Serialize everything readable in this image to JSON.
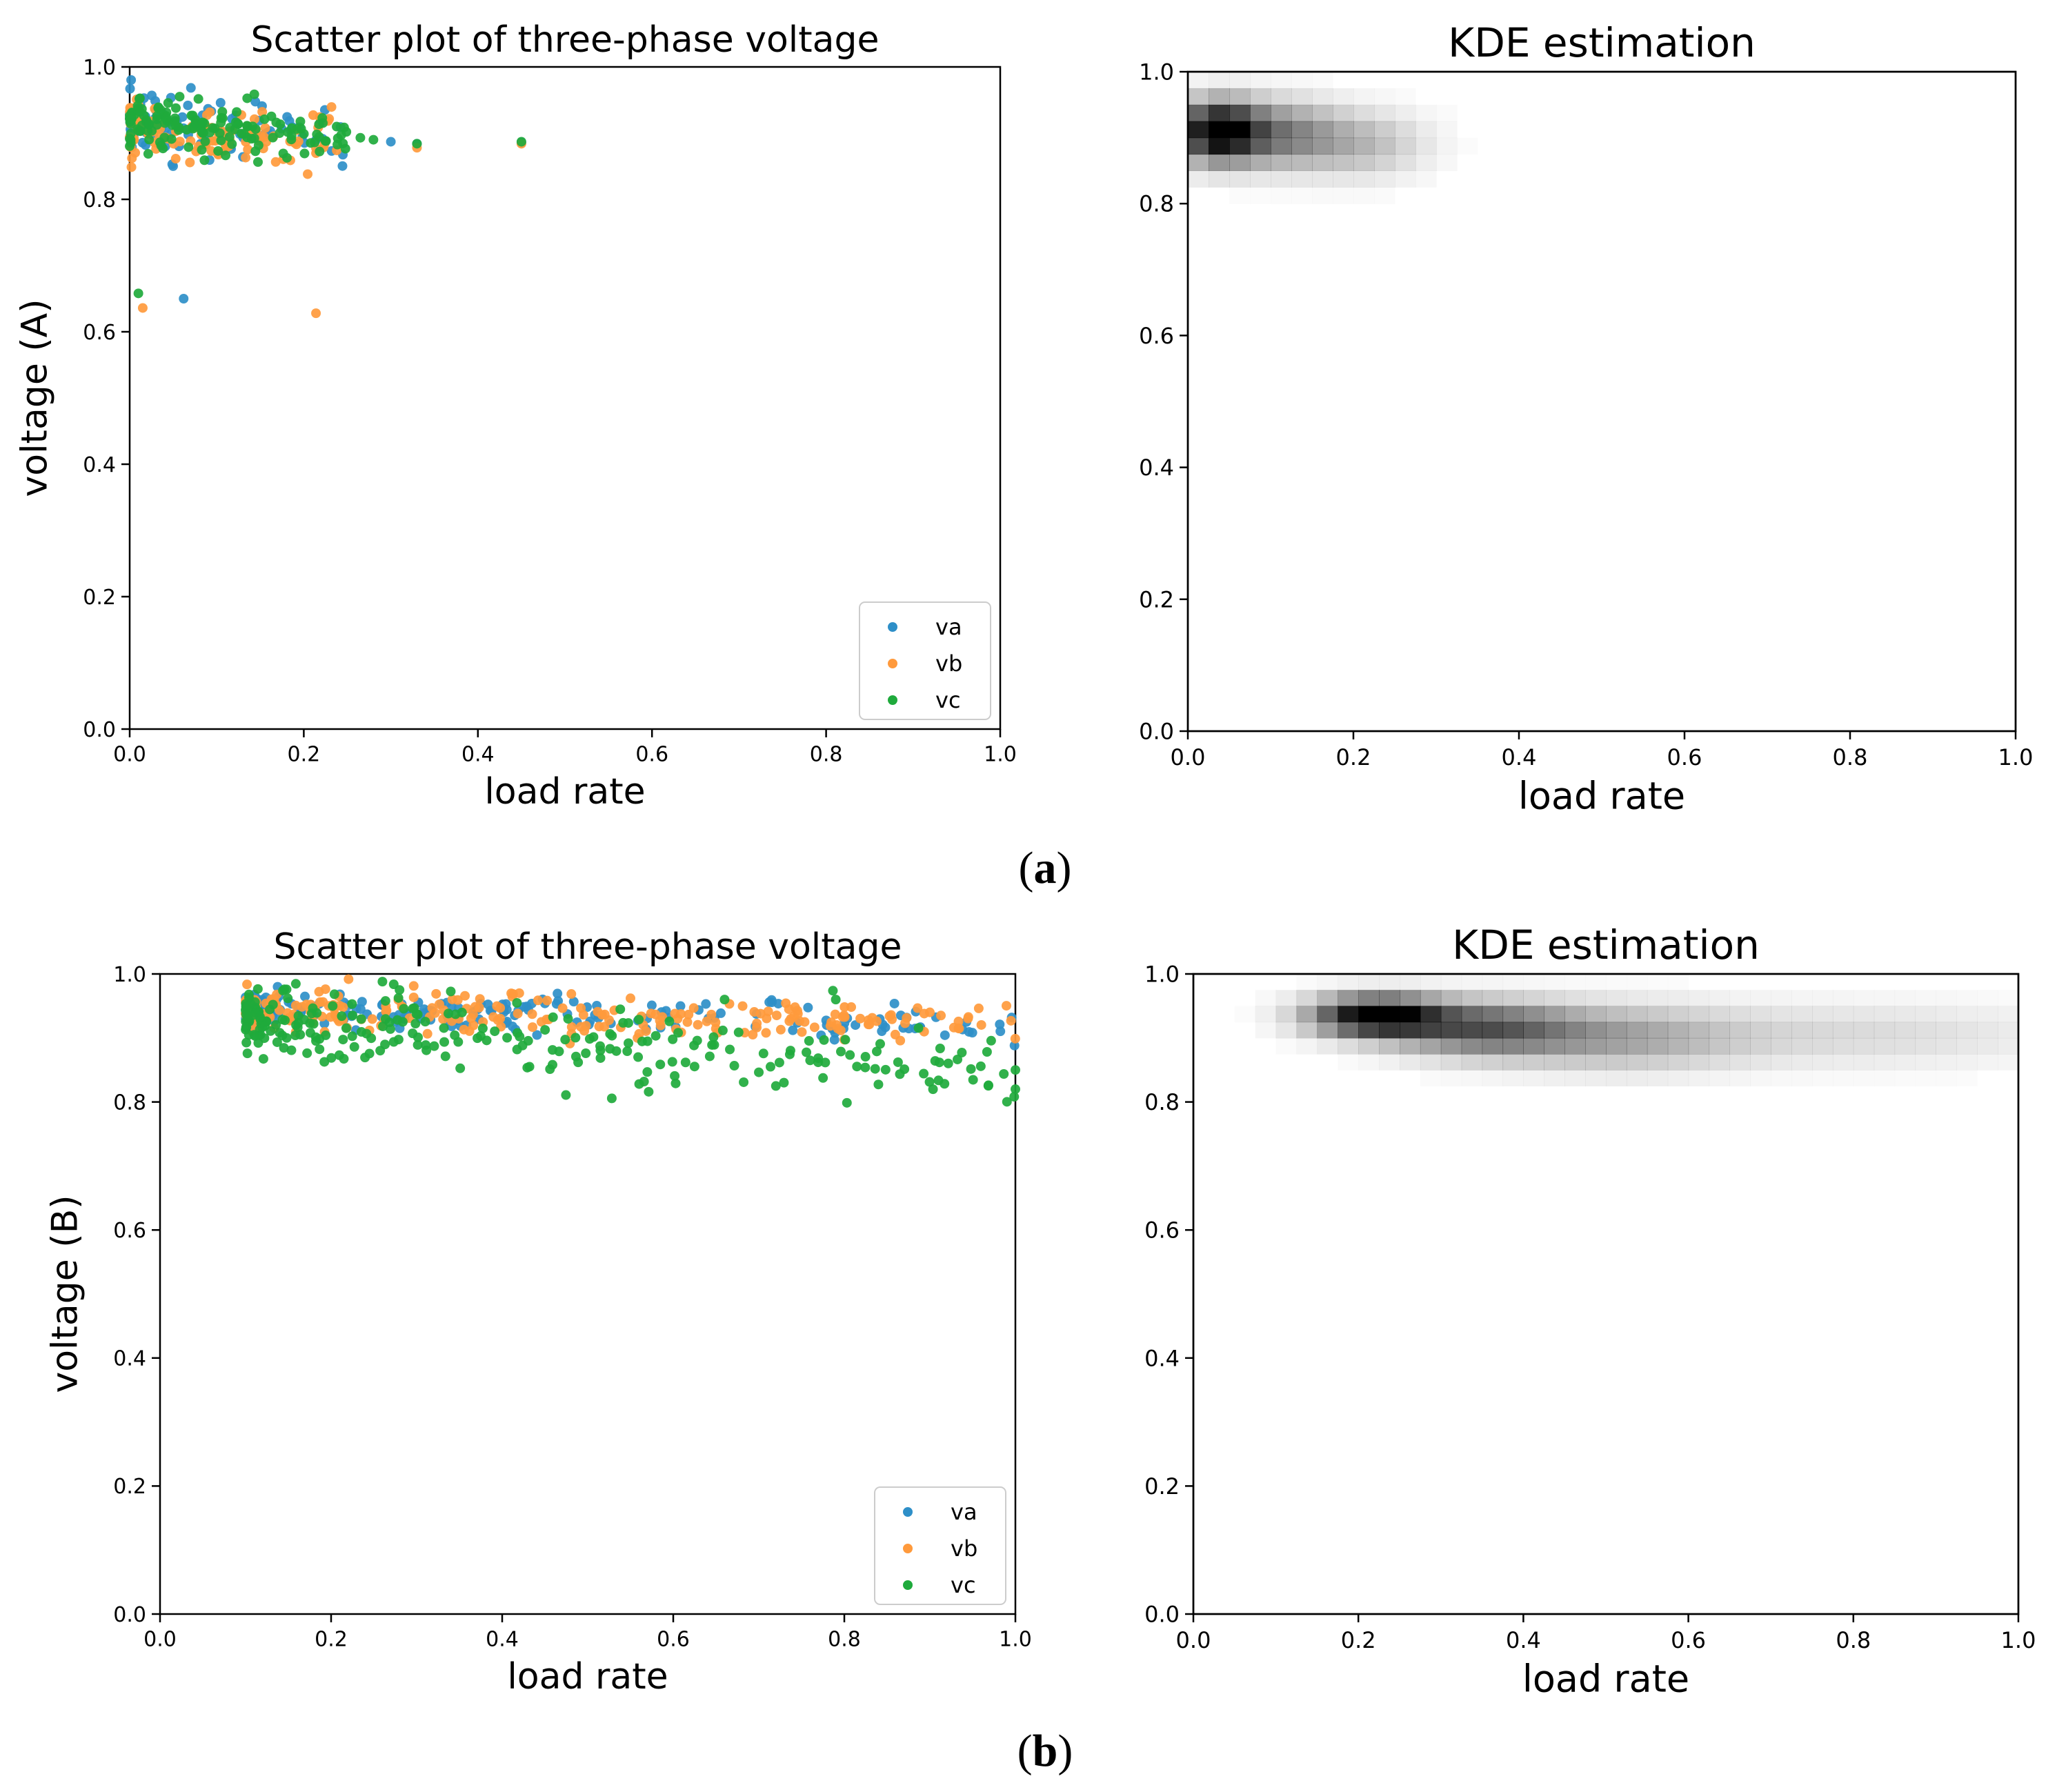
{
  "panel_labels": {
    "a": "(a)",
    "a_letter": "a",
    "b": "(b)",
    "b_letter": "b"
  },
  "colors": {
    "va": "#2e8fc8",
    "vb": "#ff9a3c",
    "vc": "#1faa3c",
    "axis": "#000000",
    "kde": "#000000"
  },
  "chart_data": [
    {
      "id": "a-scatter",
      "type": "scatter",
      "title": "Scatter plot of three-phase voltage",
      "xlabel": "load rate",
      "ylabel": "voltage (A)",
      "xlim": [
        0,
        1
      ],
      "ylim": [
        0,
        1
      ],
      "xticks": [
        "0.0",
        "0.2",
        "0.4",
        "0.6",
        "0.8",
        "1.0"
      ],
      "yticks": [
        "0.0",
        "0.2",
        "0.4",
        "0.6",
        "0.8",
        "1.0"
      ],
      "legend": {
        "position": "lower-right",
        "entries": [
          "va",
          "vb",
          "vc"
        ]
      },
      "series": [
        {
          "name": "va",
          "cluster": {
            "x_range": [
              0.0,
              0.25
            ],
            "y_center": 0.915,
            "y_spread": 0.022,
            "count": 110,
            "slope": -0.08
          },
          "points": [
            [
              0.3,
              0.887
            ],
            [
              0.062,
              0.65
            ],
            [
              0.45,
              0.886
            ],
            [
              0.33,
              0.884
            ]
          ]
        },
        {
          "name": "vb",
          "cluster": {
            "x_range": [
              0.0,
              0.25
            ],
            "y_center": 0.905,
            "y_spread": 0.022,
            "count": 110,
            "slope": -0.08
          },
          "points": [
            [
              0.33,
              0.878
            ],
            [
              0.015,
              0.636
            ],
            [
              0.214,
              0.628
            ],
            [
              0.45,
              0.884
            ],
            [
              0.07,
              0.888
            ]
          ]
        },
        {
          "name": "vc",
          "cluster": {
            "x_range": [
              0.0,
              0.25
            ],
            "y_center": 0.915,
            "y_spread": 0.02,
            "count": 150,
            "slope": -0.08
          },
          "points": [
            [
              0.01,
              0.658
            ],
            [
              0.45,
              0.887
            ],
            [
              0.33,
              0.884
            ],
            [
              0.28,
              0.89
            ],
            [
              0.265,
              0.893
            ]
          ]
        }
      ]
    },
    {
      "id": "a-kde",
      "type": "heatmap",
      "title": "KDE estimation",
      "xlabel": "load rate",
      "ylabel": "",
      "xlim": [
        0,
        1
      ],
      "ylim": [
        0,
        1
      ],
      "xticks": [
        "0.0",
        "0.2",
        "0.4",
        "0.6",
        "0.8",
        "1.0"
      ],
      "yticks": [
        "0.0",
        "0.2",
        "0.4",
        "0.6",
        "0.8",
        "1.0"
      ],
      "grid_cells": 40,
      "density_peaks": [
        {
          "x": 0.035,
          "y": 0.91,
          "sx": 0.035,
          "sy": 0.032,
          "weight": 1.0
        },
        {
          "x": 0.11,
          "y": 0.905,
          "sx": 0.05,
          "sy": 0.035,
          "weight": 0.45
        },
        {
          "x": 0.21,
          "y": 0.89,
          "sx": 0.055,
          "sy": 0.035,
          "weight": 0.25
        }
      ]
    },
    {
      "id": "b-scatter",
      "type": "scatter",
      "title": "Scatter plot of three-phase voltage",
      "xlabel": "load rate",
      "ylabel": "voltage (B)",
      "xlim": [
        0,
        1
      ],
      "ylim": [
        0,
        1
      ],
      "xticks": [
        "0.0",
        "0.2",
        "0.4",
        "0.6",
        "0.8",
        "1.0"
      ],
      "yticks": [
        "0.0",
        "0.2",
        "0.4",
        "0.6",
        "0.8",
        "1.0"
      ],
      "legend": {
        "position": "lower-right",
        "entries": [
          "va",
          "vb",
          "vc"
        ]
      },
      "series": [
        {
          "name": "va",
          "cluster": {
            "x_range": [
              0.1,
              1.0
            ],
            "y_center": 0.945,
            "y_spread": 0.014,
            "count": 200,
            "slope": -0.03
          },
          "points": []
        },
        {
          "name": "vb",
          "cluster": {
            "x_range": [
              0.1,
              1.0
            ],
            "y_center": 0.945,
            "y_spread": 0.017,
            "count": 230,
            "slope": -0.03
          },
          "points": [
            [
              0.42,
              0.97
            ],
            [
              0.55,
              0.962
            ],
            [
              0.9,
              0.94
            ]
          ]
        },
        {
          "name": "vc",
          "cluster": {
            "x_range": [
              0.1,
              1.0
            ],
            "y_center": 0.925,
            "y_spread": 0.03,
            "count": 260,
            "slope": -0.09
          },
          "points": [
            [
              0.26,
              0.988
            ],
            [
              0.28,
              0.975
            ],
            [
              0.66,
              0.96
            ],
            [
              0.79,
              0.96
            ],
            [
              0.72,
              0.825
            ],
            [
              0.76,
              0.865
            ],
            [
              1.0,
              0.82
            ],
            [
              1.0,
              0.85
            ]
          ]
        }
      ]
    },
    {
      "id": "b-kde",
      "type": "heatmap",
      "title": "KDE estimation",
      "xlabel": "load rate",
      "ylabel": "",
      "xlim": [
        0,
        1
      ],
      "ylim": [
        0,
        1
      ],
      "xticks": [
        "0.0",
        "0.2",
        "0.4",
        "0.6",
        "0.8",
        "1.0"
      ],
      "yticks": [
        "0.0",
        "0.2",
        "0.4",
        "0.6",
        "0.8",
        "1.0"
      ],
      "grid_cells": 40,
      "density_peaks": [
        {
          "x": 0.22,
          "y": 0.935,
          "sx": 0.055,
          "sy": 0.022,
          "weight": 1.0
        },
        {
          "x": 0.35,
          "y": 0.915,
          "sx": 0.08,
          "sy": 0.03,
          "weight": 0.6
        },
        {
          "x": 0.52,
          "y": 0.9,
          "sx": 0.1,
          "sy": 0.035,
          "weight": 0.3
        },
        {
          "x": 0.8,
          "y": 0.905,
          "sx": 0.18,
          "sy": 0.035,
          "weight": 0.14
        }
      ]
    }
  ]
}
